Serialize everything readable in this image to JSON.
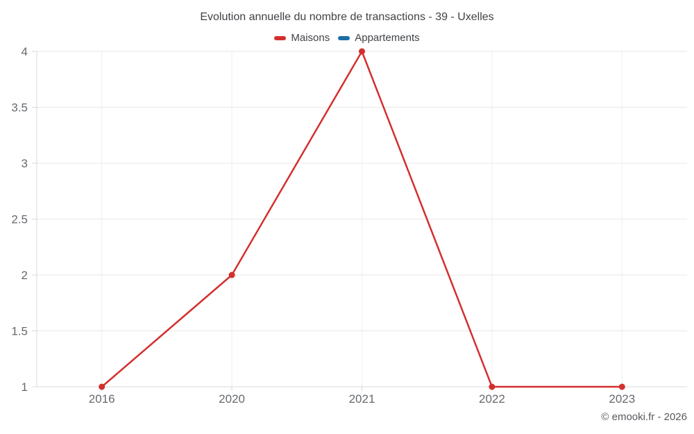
{
  "header": {
    "title": "Evolution annuelle du nombre de transactions - 39 - Uxelles"
  },
  "legend": {
    "items": [
      {
        "label": "Maisons",
        "color": "#d32f2e"
      },
      {
        "label": "Appartements",
        "color": "#1c6ea4"
      }
    ]
  },
  "footer": {
    "credit": "© emooki.fr - 2026"
  },
  "chart_data": {
    "type": "line",
    "title": "Evolution annuelle du nombre de transactions - 39 - Uxelles",
    "categories": [
      "2016",
      "2020",
      "2021",
      "2022",
      "2023"
    ],
    "series": [
      {
        "name": "Maisons",
        "color": "#d32f2e",
        "values": [
          1,
          2,
          4,
          1,
          1
        ]
      },
      {
        "name": "Appartements",
        "color": "#1c6ea4",
        "values": []
      }
    ],
    "xlabel": "",
    "ylabel": "",
    "ylim": [
      1,
      4
    ],
    "yticks": [
      1,
      1.5,
      2,
      2.5,
      3,
      3.5,
      4
    ],
    "grid": true,
    "legend_position": "top",
    "colors": {
      "grid_horizontal": "#e7e7e7",
      "grid_vertical": "#efefef",
      "axis": "#d9d9d9",
      "tick_label": "#65696e"
    }
  }
}
